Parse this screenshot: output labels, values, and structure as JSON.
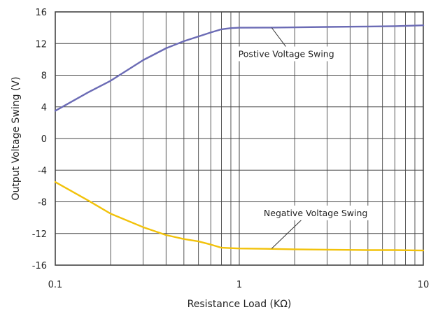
{
  "chart_data": {
    "type": "line",
    "xlabel": "Resistance Load (KΩ)",
    "ylabel": "Output Voltage Swing (V)",
    "xscale": "log",
    "xlim": [
      0.1,
      10
    ],
    "ylim": [
      -16,
      16
    ],
    "x_ticks": [
      0.1,
      1,
      10
    ],
    "x_tick_labels": [
      "0.1",
      "1",
      "10"
    ],
    "y_ticks": [
      -16,
      -12,
      -8,
      -4,
      0,
      4,
      8,
      12,
      16
    ],
    "y_tick_labels": [
      "-16",
      "-12",
      "-8",
      "-4",
      "0",
      "4",
      "8",
      "12",
      "16"
    ],
    "grid": true,
    "series": [
      {
        "color": "#6b6bb5",
        "x": [
          0.1,
          0.15,
          0.2,
          0.3,
          0.4,
          0.5,
          0.6,
          0.7,
          0.8,
          0.9,
          1.0,
          1.5,
          2,
          3,
          5,
          7,
          10
        ],
        "y": [
          3.5,
          5.8,
          7.3,
          9.9,
          11.4,
          12.3,
          12.9,
          13.4,
          13.8,
          13.95,
          14.0,
          14.02,
          14.05,
          14.1,
          14.15,
          14.2,
          14.3
        ]
      },
      {
        "color": "#f2c20a",
        "x": [
          0.1,
          0.15,
          0.2,
          0.3,
          0.4,
          0.5,
          0.6,
          0.7,
          0.8,
          0.9,
          1.0,
          1.5,
          2,
          3,
          5,
          7,
          10
        ],
        "y": [
          -5.5,
          -7.8,
          -9.5,
          -11.2,
          -12.2,
          -12.7,
          -13.0,
          -13.4,
          -13.8,
          -13.85,
          -13.9,
          -13.95,
          -14.0,
          -14.05,
          -14.1,
          -14.1,
          -14.15
        ]
      }
    ],
    "annotations": [
      {
        "text": "Postive Voltage Swing",
        "target_x": 1.5,
        "target_y": 14.0,
        "text_x": 1.8,
        "text_y": 10.3
      },
      {
        "text": "Negative Voltage Swing",
        "target_x": 1.5,
        "target_y": -13.9,
        "text_x": 2.6,
        "text_y": -9.8
      }
    ]
  }
}
